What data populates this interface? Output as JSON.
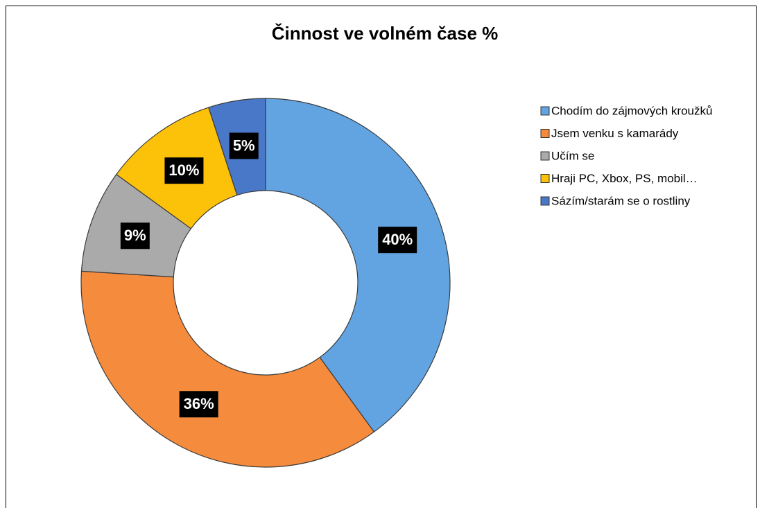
{
  "chart_data": {
    "type": "donut",
    "title": "Činnost ve volném čase  %",
    "categories": [
      "Chodím do zájmových kroužků",
      "Jsem venku s kamarády",
      "Učím se",
      "Hraji PC, Xbox, PS, mobil…",
      "Sázím/starám se o rostliny"
    ],
    "values": [
      40,
      36,
      9,
      10,
      5
    ],
    "value_labels": [
      "40%",
      "36%",
      "9%",
      "10%",
      "5%"
    ],
    "colors": [
      "#62a4e2",
      "#f58b3d",
      "#aaaaaa",
      "#fcc20a",
      "#4a78c8"
    ],
    "legend": "right"
  }
}
